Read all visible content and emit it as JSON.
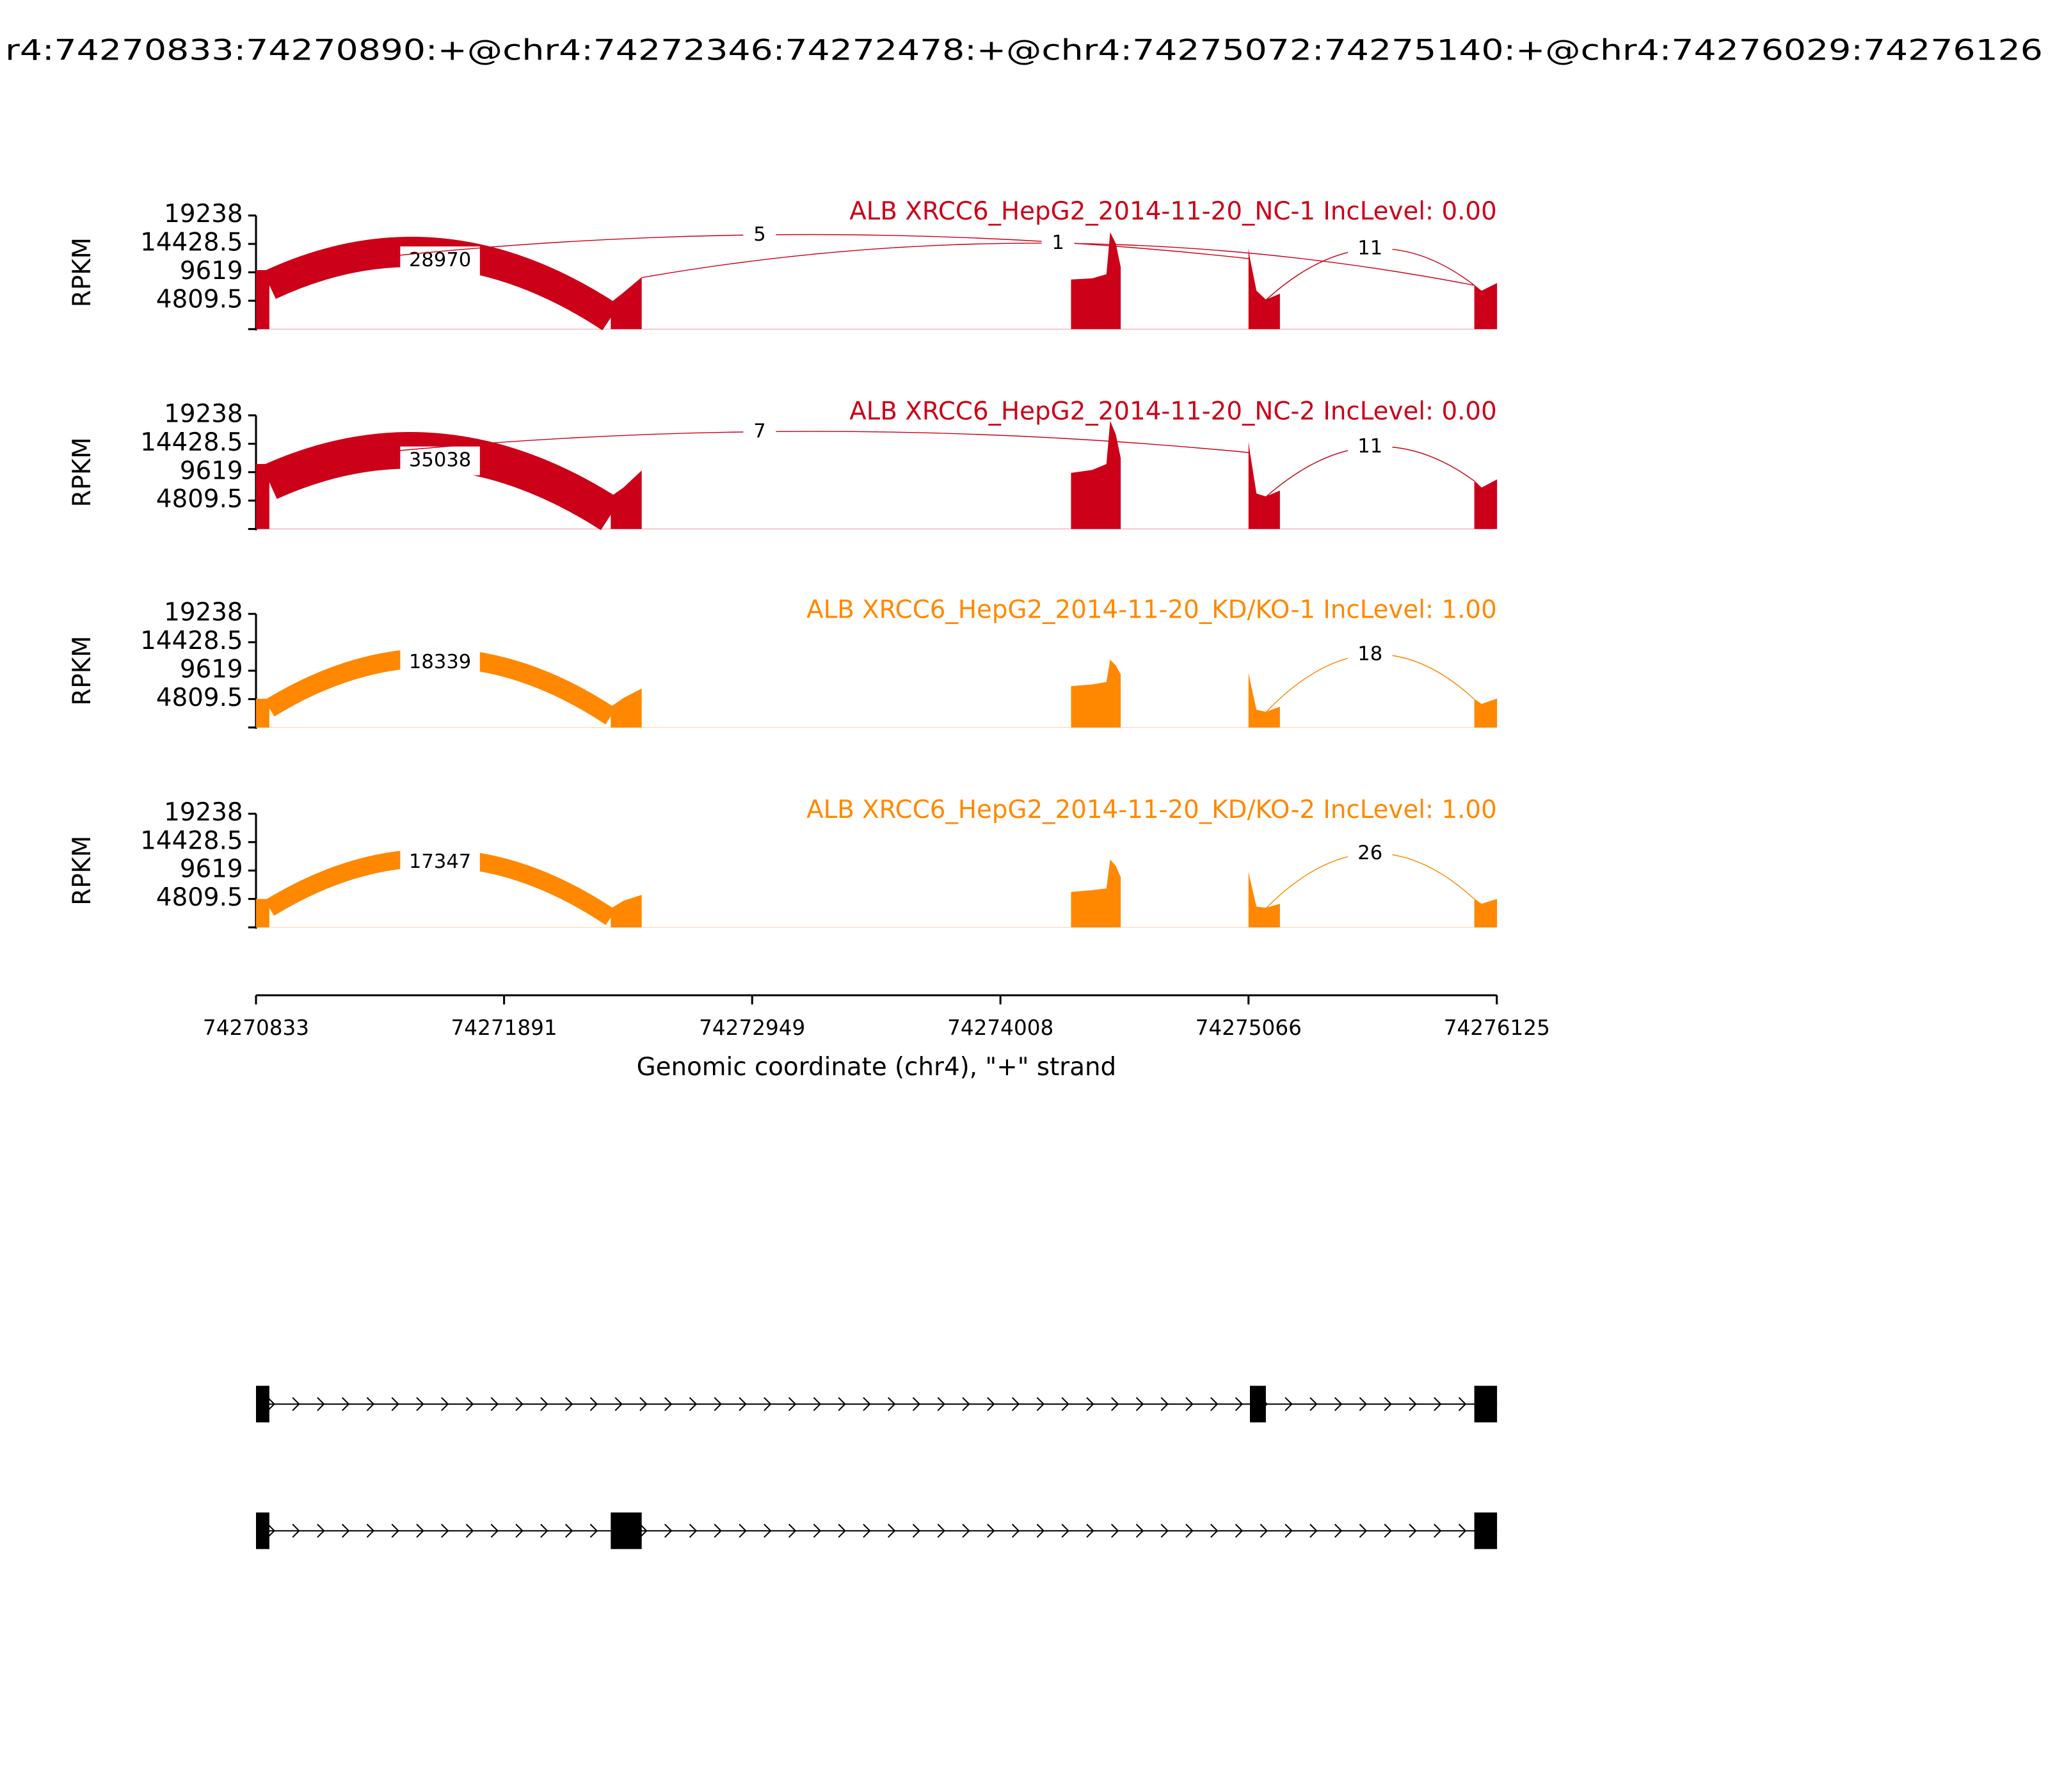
{
  "chart_data": {
    "type": "sashimi",
    "title": "r4:74270833:74270890:+@chr4:74272346:74272478:+@chr4:74275072:74275140:+@chr4:74276029:74276126",
    "xlabel": "Genomic coordinate (chr4), \"+\" strand",
    "ylabel": "RPKM",
    "xlim": [
      74270833,
      74276125
    ],
    "xticks": [
      74270833,
      74271891,
      74272949,
      74274008,
      74275066,
      74276125
    ],
    "ylim": [
      0,
      19238
    ],
    "yticks": [
      4809.5,
      9619,
      14428.5,
      19238
    ],
    "samples": [
      {
        "name": "ALB XRCC6_HepG2_2014-11-20_NC-1 IncLevel: 0.00",
        "color": "#cc0018",
        "coverage": [
          {
            "x": [
              74270833,
              74270890
            ],
            "y": [
              10000,
              10000
            ]
          },
          {
            "x": [
              74272346,
              74272400,
              74272478
            ],
            "y": [
              4500,
              6200,
              8800
            ]
          },
          {
            "x": [
              74274309,
              74274400,
              74274460,
              74274476,
              74274500,
              74274521
            ],
            "y": [
              8400,
              8600,
              9300,
              16400,
              14500,
              10500
            ]
          },
          {
            "x": [
              74275066,
              74275072,
              74275100,
              74275140,
              74275200
            ],
            "y": [
              13700,
              12000,
              6500,
              5000,
              6000
            ]
          },
          {
            "x": [
              74276029,
              74276060,
              74276126
            ],
            "y": [
              7500,
              6500,
              7800
            ]
          }
        ],
        "junctions": [
          {
            "start": 74270890,
            "end": 74272346,
            "count": 28970
          },
          {
            "start": 74270890,
            "end": 74275072,
            "count": 5
          },
          {
            "start": 74272478,
            "end": 74276029,
            "count": 1
          },
          {
            "start": 74275140,
            "end": 74276029,
            "count": 11
          }
        ]
      },
      {
        "name": "ALB XRCC6_HepG2_2014-11-20_NC-2 IncLevel: 0.00",
        "color": "#cc0018",
        "coverage": [
          {
            "x": [
              74270833,
              74270890
            ],
            "y": [
              11000,
              11000
            ]
          },
          {
            "x": [
              74272346,
              74272400,
              74272478
            ],
            "y": [
              5500,
              7000,
              9900
            ]
          },
          {
            "x": [
              74274309,
              74274400,
              74274460,
              74274476,
              74274500,
              74274521
            ],
            "y": [
              9500,
              10000,
              11000,
              18300,
              16000,
              12000
            ]
          },
          {
            "x": [
              74275066,
              74275072,
              74275100,
              74275140,
              74275200
            ],
            "y": [
              14800,
              13000,
              6000,
              5500,
              6500
            ]
          },
          {
            "x": [
              74276029,
              74276060,
              74276126
            ],
            "y": [
              8200,
              7000,
              8400
            ]
          }
        ],
        "junctions": [
          {
            "start": 74270890,
            "end": 74272346,
            "count": 35038
          },
          {
            "start": 74270890,
            "end": 74275072,
            "count": 7
          },
          {
            "start": 74275140,
            "end": 74276029,
            "count": 11
          }
        ]
      },
      {
        "name": "ALB XRCC6_HepG2_2014-11-20_KD/KO-1 IncLevel: 1.00",
        "color": "#ff8800",
        "coverage": [
          {
            "x": [
              74270833,
              74270890
            ],
            "y": [
              4860,
              4860
            ]
          },
          {
            "x": [
              74272346,
              74272400,
              74272478
            ],
            "y": [
              3500,
              5000,
              6600
            ]
          },
          {
            "x": [
              74274309,
              74274400,
              74274460,
              74274476,
              74274500,
              74274521
            ],
            "y": [
              7000,
              7300,
              7700,
              11500,
              10500,
              9000
            ]
          },
          {
            "x": [
              74275066,
              74275072,
              74275100,
              74275140,
              74275200
            ],
            "y": [
              9300,
              8000,
              3000,
              2650,
              3500
            ]
          },
          {
            "x": [
              74276029,
              74276060,
              74276126
            ],
            "y": [
              4860,
              4000,
              4900
            ]
          }
        ],
        "junctions": [
          {
            "start": 74270890,
            "end": 74272346,
            "count": 18339
          },
          {
            "start": 74275140,
            "end": 74276029,
            "count": 18
          }
        ]
      },
      {
        "name": "ALB XRCC6_HepG2_2014-11-20_KD/KO-2 IncLevel: 1.00",
        "color": "#ff8800",
        "coverage": [
          {
            "x": [
              74270833,
              74270890
            ],
            "y": [
              4800,
              4800
            ]
          },
          {
            "x": [
              74272346,
              74272400,
              74272478
            ],
            "y": [
              3200,
              4500,
              5500
            ]
          },
          {
            "x": [
              74274309,
              74274400,
              74274460,
              74274476,
              74274500,
              74274521
            ],
            "y": [
              6000,
              6300,
              6600,
              11500,
              10400,
              8500
            ]
          },
          {
            "x": [
              74275066,
              74275072,
              74275100,
              74275140,
              74275200
            ],
            "y": [
              9500,
              8200,
              3500,
              3300,
              4000
            ]
          },
          {
            "x": [
              74276029,
              74276060,
              74276126
            ],
            "y": [
              4860,
              4000,
              4800
            ]
          }
        ],
        "junctions": [
          {
            "start": 74270890,
            "end": 74272346,
            "count": 17347
          },
          {
            "start": 74275140,
            "end": 74276029,
            "count": 26
          }
        ]
      }
    ],
    "transcripts": [
      {
        "exons": [
          [
            74270833,
            74270890
          ],
          [
            74275072,
            74275140
          ],
          [
            74276029,
            74276126
          ]
        ]
      },
      {
        "exons": [
          [
            74270833,
            74270890
          ],
          [
            74272346,
            74272478
          ],
          [
            74276029,
            74276126
          ]
        ]
      }
    ]
  }
}
